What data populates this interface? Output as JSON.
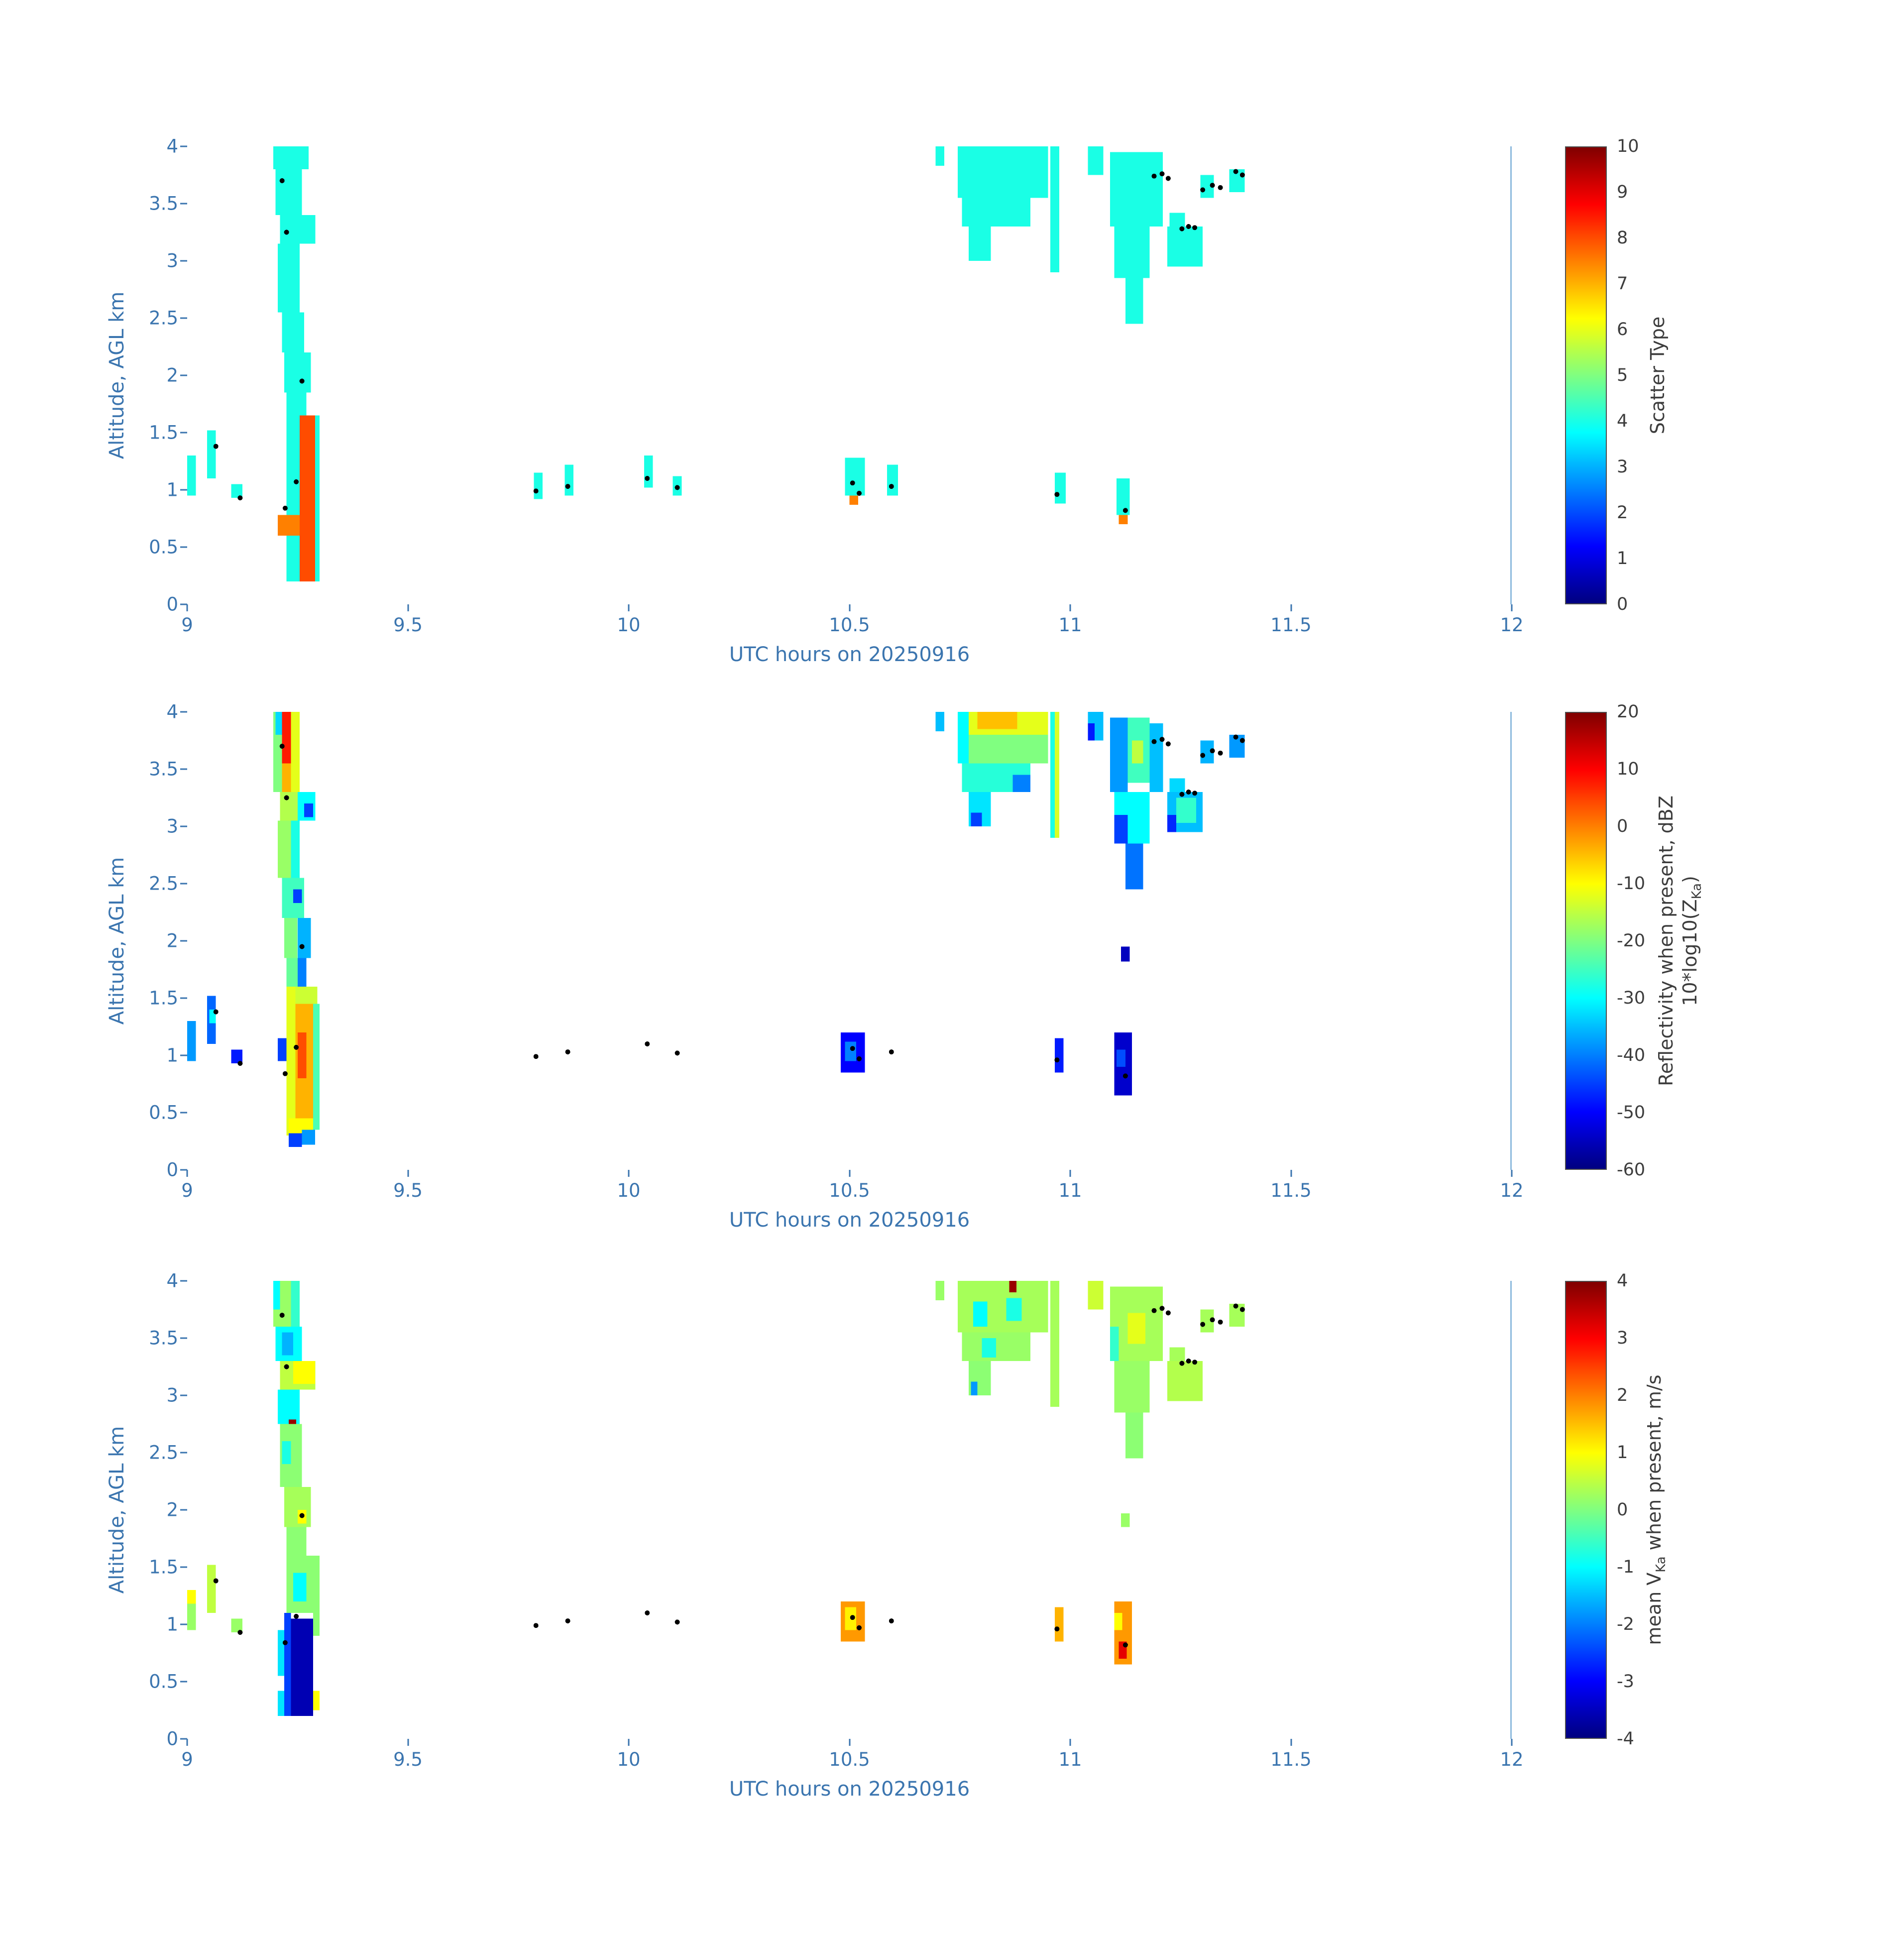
{
  "colors": {
    "background": "#FFFFFF",
    "axis_text": "#3B75AF",
    "colorbar_text": "#3D3D3D",
    "spine_right": "#8FBBDE",
    "dot": "#000000",
    "jet_stops": [
      "#000080",
      "#0000FF",
      "#00FFFF",
      "#FFFF00",
      "#FF0000",
      "#800000"
    ]
  },
  "overlay_dots": [
    [
      9.215,
      3.7
    ],
    [
      9.225,
      3.25
    ],
    [
      9.26,
      1.95
    ],
    [
      9.247,
      1.07
    ],
    [
      9.222,
      0.84
    ],
    [
      9.065,
      1.38
    ],
    [
      9.12,
      0.93
    ],
    [
      9.79,
      0.99
    ],
    [
      9.862,
      1.03
    ],
    [
      10.042,
      1.1
    ],
    [
      10.11,
      1.02
    ],
    [
      10.507,
      1.06
    ],
    [
      10.522,
      0.97
    ],
    [
      10.595,
      1.03
    ],
    [
      10.97,
      0.96
    ],
    [
      11.125,
      0.82
    ],
    [
      11.19,
      3.74
    ],
    [
      11.208,
      3.76
    ],
    [
      11.222,
      3.72
    ],
    [
      11.253,
      3.28
    ],
    [
      11.268,
      3.3
    ],
    [
      11.282,
      3.29
    ],
    [
      11.3,
      3.62
    ],
    [
      11.322,
      3.66
    ],
    [
      11.34,
      3.64
    ],
    [
      11.375,
      3.78
    ],
    [
      11.39,
      3.75
    ]
  ],
  "chart_data": [
    {
      "type": "heatmap",
      "title": "",
      "xlabel": "UTC hours on 20250916",
      "ylabel": "Altitude, AGL km",
      "xlim": [
        9,
        12
      ],
      "ylim": [
        0,
        4
      ],
      "xtick_labels": [
        "9",
        "9.5",
        "10",
        "10.5",
        "11",
        "11.5",
        "12"
      ],
      "ytick_labels": [
        "0",
        "0.5",
        "1",
        "1.5",
        "2",
        "2.5",
        "3",
        "3.5",
        "4"
      ],
      "grid": false,
      "colorbar": {
        "clim": [
          0,
          10
        ],
        "tick_labels": [
          "0",
          "1",
          "2",
          "3",
          "4",
          "5",
          "6",
          "7",
          "8",
          "9",
          "10"
        ],
        "label_lines": [
          [
            {
              "text": "Scatter Type"
            }
          ]
        ]
      },
      "cells": [
        [
          9.195,
          9.275,
          3.8,
          4.0,
          4
        ],
        [
          9.2,
          9.26,
          3.4,
          3.8,
          4
        ],
        [
          9.21,
          9.29,
          3.15,
          3.4,
          4
        ],
        [
          9.205,
          9.255,
          2.55,
          3.15,
          4
        ],
        [
          9.215,
          9.265,
          2.2,
          2.55,
          4
        ],
        [
          9.22,
          9.28,
          1.85,
          2.2,
          4
        ],
        [
          9.225,
          9.27,
          1.65,
          1.85,
          4
        ],
        [
          9.225,
          9.3,
          0.2,
          1.65,
          4
        ],
        [
          9.255,
          9.29,
          0.2,
          1.65,
          8
        ],
        [
          9.205,
          9.255,
          0.6,
          0.78,
          7.5
        ],
        [
          9.0,
          9.02,
          0.95,
          1.3,
          4
        ],
        [
          9.045,
          9.065,
          1.1,
          1.52,
          4
        ],
        [
          9.1,
          9.125,
          0.93,
          1.05,
          4
        ],
        [
          9.785,
          9.805,
          0.92,
          1.15,
          4
        ],
        [
          9.855,
          9.875,
          0.95,
          1.22,
          4
        ],
        [
          10.035,
          10.055,
          1.02,
          1.3,
          4
        ],
        [
          10.1,
          10.12,
          0.95,
          1.12,
          4
        ],
        [
          10.49,
          10.535,
          0.95,
          1.28,
          4
        ],
        [
          10.5,
          10.52,
          0.87,
          0.95,
          7.5
        ],
        [
          10.585,
          10.61,
          0.95,
          1.22,
          4
        ],
        [
          10.965,
          10.99,
          0.88,
          1.15,
          4
        ],
        [
          11.105,
          11.135,
          0.78,
          1.1,
          4
        ],
        [
          11.11,
          11.13,
          0.7,
          0.78,
          7.5
        ],
        [
          10.695,
          10.715,
          3.83,
          4.0,
          4
        ],
        [
          10.745,
          10.95,
          3.55,
          4.0,
          4
        ],
        [
          10.755,
          10.91,
          3.3,
          3.55,
          4
        ],
        [
          10.77,
          10.82,
          3.0,
          3.3,
          4
        ],
        [
          10.955,
          10.975,
          2.9,
          4.0,
          4
        ],
        [
          11.04,
          11.075,
          3.75,
          4.0,
          4
        ],
        [
          11.09,
          11.21,
          3.3,
          3.95,
          4
        ],
        [
          11.1,
          11.18,
          2.85,
          3.3,
          4
        ],
        [
          11.125,
          11.165,
          2.45,
          2.85,
          4
        ],
        [
          11.22,
          11.3,
          2.95,
          3.3,
          4
        ],
        [
          11.225,
          11.26,
          3.3,
          3.42,
          4
        ],
        [
          11.295,
          11.325,
          3.55,
          3.75,
          4
        ],
        [
          11.36,
          11.395,
          3.6,
          3.8,
          4
        ]
      ]
    },
    {
      "type": "heatmap",
      "title": "",
      "xlabel": "UTC hours on 20250916",
      "ylabel": "Altitude, AGL km",
      "xlim": [
        9,
        12
      ],
      "ylim": [
        0,
        4
      ],
      "xtick_labels": [
        "9",
        "9.5",
        "10",
        "10.5",
        "11",
        "11.5",
        "12"
      ],
      "ytick_labels": [
        "0",
        "0.5",
        "1",
        "1.5",
        "2",
        "2.5",
        "3",
        "3.5",
        "4"
      ],
      "grid": false,
      "colorbar": {
        "clim": [
          -60,
          20
        ],
        "tick_labels": [
          "-60",
          "-50",
          "-40",
          "-30",
          "-20",
          "-10",
          "0",
          "10",
          "20"
        ],
        "label_lines": [
          [
            {
              "text": "Reflectivity when present, dBZ"
            }
          ],
          [
            {
              "text": "10*log10(Z"
            },
            {
              "sub": "Ka"
            },
            {
              "text": ")"
            }
          ]
        ]
      },
      "cells": [
        [
          9.195,
          9.215,
          3.3,
          4.0,
          -20
        ],
        [
          9.2,
          9.215,
          3.8,
          4.0,
          -33
        ],
        [
          9.215,
          9.235,
          3.55,
          4.0,
          8
        ],
        [
          9.215,
          9.235,
          3.3,
          3.55,
          -4
        ],
        [
          9.235,
          9.255,
          3.3,
          4.0,
          -12
        ],
        [
          9.21,
          9.25,
          3.05,
          3.3,
          -16
        ],
        [
          9.25,
          9.29,
          3.05,
          3.3,
          -30
        ],
        [
          9.265,
          9.285,
          3.08,
          3.2,
          -45
        ],
        [
          9.205,
          9.235,
          2.55,
          3.05,
          -18
        ],
        [
          9.235,
          9.255,
          2.55,
          3.05,
          -28
        ],
        [
          9.215,
          9.265,
          2.2,
          2.55,
          -25
        ],
        [
          9.24,
          9.26,
          2.33,
          2.45,
          -45
        ],
        [
          9.22,
          9.25,
          1.85,
          2.2,
          -20
        ],
        [
          9.25,
          9.28,
          1.85,
          2.2,
          -36
        ],
        [
          9.225,
          9.25,
          1.6,
          1.85,
          -22
        ],
        [
          9.25,
          9.27,
          1.6,
          1.85,
          -40
        ],
        [
          9.225,
          9.245,
          0.3,
          1.6,
          -12
        ],
        [
          9.245,
          9.295,
          1.45,
          1.6,
          -14
        ],
        [
          9.245,
          9.285,
          0.45,
          1.45,
          -4
        ],
        [
          9.25,
          9.27,
          0.8,
          1.2,
          4
        ],
        [
          9.285,
          9.3,
          0.35,
          1.45,
          -24
        ],
        [
          9.205,
          9.225,
          0.95,
          1.15,
          -45
        ],
        [
          9.23,
          9.285,
          0.3,
          0.45,
          -10
        ],
        [
          9.23,
          9.26,
          0.2,
          0.32,
          -45
        ],
        [
          9.26,
          9.29,
          0.22,
          0.35,
          -38
        ],
        [
          9.0,
          9.02,
          0.95,
          1.3,
          -38
        ],
        [
          9.045,
          9.065,
          1.1,
          1.52,
          -42
        ],
        [
          9.05,
          9.065,
          1.28,
          1.4,
          -30
        ],
        [
          9.1,
          9.125,
          0.93,
          1.05,
          -48
        ],
        [
          10.48,
          10.535,
          0.85,
          1.2,
          -50
        ],
        [
          10.49,
          10.515,
          0.95,
          1.12,
          -40
        ],
        [
          10.965,
          10.985,
          0.85,
          1.15,
          -48
        ],
        [
          11.1,
          11.14,
          0.65,
          1.2,
          -54
        ],
        [
          11.105,
          11.125,
          0.9,
          1.05,
          -44
        ],
        [
          11.115,
          11.135,
          1.82,
          1.95,
          -55
        ],
        [
          10.695,
          10.715,
          3.83,
          4.0,
          -35
        ],
        [
          10.745,
          10.95,
          3.55,
          4.0,
          -20
        ],
        [
          10.745,
          10.95,
          3.8,
          4.0,
          -12
        ],
        [
          10.79,
          10.88,
          3.85,
          4.0,
          -5
        ],
        [
          10.745,
          10.77,
          3.55,
          4.0,
          -30
        ],
        [
          10.755,
          10.91,
          3.3,
          3.55,
          -27
        ],
        [
          10.87,
          10.91,
          3.3,
          3.45,
          -40
        ],
        [
          10.77,
          10.82,
          3.0,
          3.3,
          -32
        ],
        [
          10.775,
          10.8,
          3.0,
          3.12,
          -45
        ],
        [
          10.955,
          10.965,
          2.9,
          4.0,
          -28
        ],
        [
          10.965,
          10.975,
          2.9,
          4.0,
          -13
        ],
        [
          11.04,
          11.075,
          3.75,
          4.0,
          -35
        ],
        [
          11.04,
          11.055,
          3.75,
          3.9,
          -48
        ],
        [
          11.09,
          11.13,
          3.3,
          3.95,
          -38
        ],
        [
          11.13,
          11.18,
          3.38,
          3.95,
          -25
        ],
        [
          11.14,
          11.165,
          3.55,
          3.75,
          -15
        ],
        [
          11.18,
          11.21,
          3.3,
          3.9,
          -35
        ],
        [
          11.1,
          11.18,
          2.85,
          3.3,
          -30
        ],
        [
          11.1,
          11.13,
          2.85,
          3.1,
          -45
        ],
        [
          11.125,
          11.165,
          2.45,
          2.85,
          -41
        ],
        [
          11.22,
          11.3,
          2.95,
          3.3,
          -35
        ],
        [
          11.24,
          11.285,
          3.03,
          3.25,
          -26
        ],
        [
          11.22,
          11.24,
          2.95,
          3.1,
          -47
        ],
        [
          11.225,
          11.26,
          3.3,
          3.42,
          -33
        ],
        [
          11.295,
          11.325,
          3.55,
          3.75,
          -36
        ],
        [
          11.36,
          11.395,
          3.6,
          3.8,
          -38
        ]
      ]
    },
    {
      "type": "heatmap",
      "title": "",
      "xlabel": "UTC hours on 20250916",
      "ylabel": "Altitude, AGL km",
      "xlim": [
        9,
        12
      ],
      "ylim": [
        0,
        4
      ],
      "xtick_labels": [
        "9",
        "9.5",
        "10",
        "10.5",
        "11",
        "11.5",
        "12"
      ],
      "ytick_labels": [
        "0",
        "0.5",
        "1",
        "1.5",
        "2",
        "2.5",
        "3",
        "3.5",
        "4"
      ],
      "grid": false,
      "colorbar": {
        "clim": [
          -4,
          4
        ],
        "tick_labels": [
          "-4",
          "-3",
          "-2",
          "-1",
          "0",
          "1",
          "2",
          "3",
          "4"
        ],
        "label_lines": [
          [
            {
              "text": "mean V"
            },
            {
              "sub": "Ka"
            },
            {
              "text": " when present, m/s"
            }
          ]
        ]
      },
      "cells": [
        [
          9.195,
          9.235,
          3.6,
          4.0,
          0.2
        ],
        [
          9.235,
          9.255,
          3.6,
          4.0,
          -0.6
        ],
        [
          9.195,
          9.21,
          3.75,
          4.0,
          -1.0
        ],
        [
          9.2,
          9.26,
          3.3,
          3.6,
          -1.0
        ],
        [
          9.215,
          9.24,
          3.35,
          3.55,
          -1.6
        ],
        [
          9.21,
          9.29,
          3.05,
          3.3,
          0.5
        ],
        [
          9.24,
          9.29,
          3.1,
          3.3,
          1.0
        ],
        [
          9.205,
          9.255,
          2.75,
          3.05,
          -1.0
        ],
        [
          9.23,
          9.247,
          2.67,
          2.79,
          3.8
        ],
        [
          9.21,
          9.26,
          2.2,
          2.75,
          0.1
        ],
        [
          9.215,
          9.235,
          2.4,
          2.6,
          -0.8
        ],
        [
          9.22,
          9.28,
          1.85,
          2.2,
          0.3
        ],
        [
          9.25,
          9.27,
          1.88,
          2.0,
          1.0
        ],
        [
          9.225,
          9.27,
          1.6,
          1.85,
          0.1
        ],
        [
          9.225,
          9.3,
          1.1,
          1.6,
          0.1
        ],
        [
          9.24,
          9.27,
          1.2,
          1.45,
          -1.0
        ],
        [
          9.22,
          9.235,
          0.2,
          1.1,
          -2.5
        ],
        [
          9.235,
          9.285,
          0.2,
          1.05,
          -3.6
        ],
        [
          9.205,
          9.22,
          0.55,
          0.95,
          -1.2
        ],
        [
          9.205,
          9.22,
          0.2,
          0.42,
          -1.2
        ],
        [
          9.285,
          9.3,
          0.9,
          1.3,
          0.1
        ],
        [
          9.285,
          9.3,
          0.25,
          0.42,
          1.0
        ],
        [
          9.0,
          9.02,
          0.95,
          1.3,
          0.2
        ],
        [
          9.0,
          9.02,
          1.18,
          1.3,
          1.0
        ],
        [
          9.045,
          9.065,
          1.1,
          1.52,
          0.5
        ],
        [
          9.1,
          9.125,
          0.93,
          1.05,
          0.2
        ],
        [
          10.48,
          10.535,
          0.85,
          1.2,
          1.8
        ],
        [
          10.49,
          10.515,
          0.95,
          1.15,
          1.1
        ],
        [
          10.965,
          10.985,
          0.85,
          1.15,
          1.6
        ],
        [
          11.1,
          11.14,
          0.65,
          1.2,
          1.8
        ],
        [
          11.11,
          11.128,
          0.7,
          0.85,
          3.2
        ],
        [
          11.1,
          11.118,
          0.95,
          1.1,
          1.0
        ],
        [
          11.115,
          11.135,
          1.85,
          1.97,
          0.2
        ],
        [
          10.695,
          10.715,
          3.83,
          4.0,
          0.2
        ],
        [
          10.745,
          10.95,
          3.55,
          4.0,
          0.3
        ],
        [
          10.78,
          10.812,
          3.6,
          3.82,
          -1.0
        ],
        [
          10.855,
          10.89,
          3.65,
          3.85,
          -0.8
        ],
        [
          10.862,
          10.878,
          3.9,
          4.0,
          3.8
        ],
        [
          10.755,
          10.91,
          3.3,
          3.55,
          0.2
        ],
        [
          10.8,
          10.832,
          3.33,
          3.5,
          -0.8
        ],
        [
          10.77,
          10.82,
          3.0,
          3.3,
          0.1
        ],
        [
          10.775,
          10.79,
          3.0,
          3.12,
          -1.8
        ],
        [
          10.955,
          10.975,
          2.9,
          4.0,
          0.3
        ],
        [
          11.04,
          11.075,
          3.75,
          4.0,
          0.6
        ],
        [
          11.09,
          11.21,
          3.3,
          3.95,
          0.3
        ],
        [
          11.13,
          11.17,
          3.45,
          3.72,
          0.8
        ],
        [
          11.09,
          11.11,
          3.3,
          3.6,
          -0.6
        ],
        [
          11.1,
          11.18,
          2.85,
          3.3,
          0.2
        ],
        [
          11.125,
          11.165,
          2.45,
          2.85,
          0.1
        ],
        [
          11.22,
          11.3,
          2.95,
          3.3,
          0.4
        ],
        [
          11.225,
          11.26,
          3.3,
          3.42,
          0.3
        ],
        [
          11.295,
          11.325,
          3.55,
          3.75,
          0.3
        ],
        [
          11.36,
          11.395,
          3.6,
          3.8,
          0.3
        ]
      ]
    }
  ]
}
